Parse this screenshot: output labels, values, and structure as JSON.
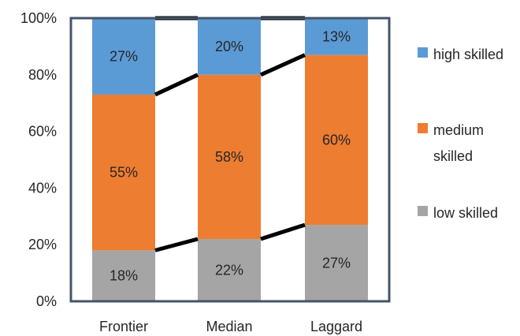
{
  "chart_data": {
    "type": "bar",
    "stacked": true,
    "categories": [
      "Frontier",
      "Median",
      "Laggard"
    ],
    "series": [
      {
        "name": "low skilled",
        "values": [
          18,
          22,
          27
        ],
        "labels": [
          "18%",
          "22%",
          "27%"
        ],
        "color": "#a5a5a5"
      },
      {
        "name": "medium skilled",
        "values": [
          55,
          58,
          60
        ],
        "labels": [
          "55%",
          "58%",
          "60%"
        ],
        "color": "#ed7d31"
      },
      {
        "name": "high skilled",
        "values": [
          27,
          20,
          13
        ],
        "labels": [
          "27%",
          "20%",
          "13%"
        ],
        "color": "#5b9bd5"
      }
    ],
    "legend_labels": [
      {
        "series": 2,
        "lines": [
          "high skilled"
        ]
      },
      {
        "series": 1,
        "lines": [
          "medium",
          "skilled"
        ]
      },
      {
        "series": 0,
        "lines": [
          "low skilled"
        ]
      }
    ],
    "ylim": [
      0,
      100
    ],
    "yticks": [
      0,
      20,
      40,
      60,
      80,
      100
    ],
    "ytick_labels": [
      "0%",
      "20%",
      "40%",
      "60%",
      "80%",
      "100%"
    ],
    "series_lines": true,
    "series_line_color": "#000000",
    "frame_color": "#44546a",
    "grid": false,
    "legend_position": "right",
    "title": "",
    "xlabel": "",
    "ylabel": ""
  }
}
